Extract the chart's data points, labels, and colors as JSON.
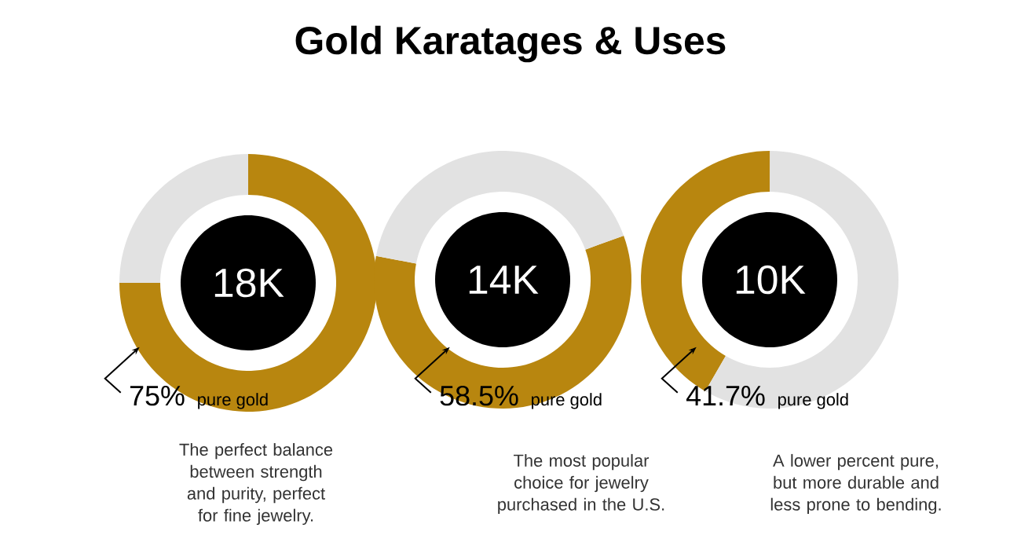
{
  "chart_data": [
    {
      "type": "other",
      "title": "Gold Karatages & Uses"
    },
    {
      "type": "donut",
      "title": "18K",
      "categories": [
        null,
        null
      ],
      "values": [
        75,
        25
      ],
      "colors": [
        "#b8860f",
        "#e2e2e2"
      ],
      "value_labels": [
        "75%",
        null
      ],
      "annotations": [
        "pure gold",
        "The perfect balance between strength and purity, perfect for fine jewelry."
      ]
    },
    {
      "type": "donut",
      "title": "14K",
      "categories": [
        null,
        null
      ],
      "values": [
        58.5,
        41.5
      ],
      "colors": [
        "#b8860f",
        "#e2e2e2"
      ],
      "value_labels": [
        "58.5%",
        null
      ],
      "annotations": [
        "pure gold",
        "The most popular choice for jewelry purchased in the U.S."
      ]
    },
    {
      "type": "donut",
      "title": "10K",
      "categories": [
        null,
        null
      ],
      "values": [
        41.7,
        58.3
      ],
      "colors": [
        "#b8860f",
        "#e2e2e2"
      ],
      "value_labels": [
        "41.7%",
        null
      ],
      "annotations": [
        "pure gold",
        "A lower percent pure, but more durable and less prone to bending."
      ]
    }
  ]
}
